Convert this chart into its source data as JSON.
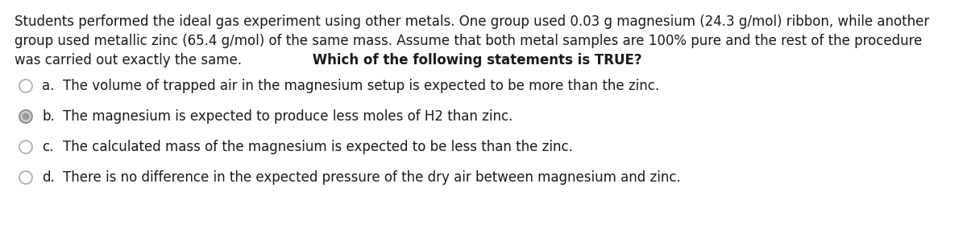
{
  "background_color": "#ffffff",
  "para_line1": "Students performed the ideal gas experiment using other metals. One group used 0.03 g magnesium (24.3 g/mol) ribbon, while another",
  "para_line2": "group used metallic zinc (65.4 g/mol) of the same mass. Assume that both metal samples are 100% pure and the rest of the procedure",
  "para_line3_normal": "was carried out exactly the same.",
  "para_line3_bold": " Which of the following statements is TRUE?",
  "options": [
    {
      "label": "a.",
      "text": "The volume of trapped air in the magnesium setup is expected to be more than the zinc.",
      "selected": false
    },
    {
      "label": "b.",
      "text": "The magnesium is expected to produce less moles of H2 than zinc.",
      "selected": true
    },
    {
      "label": "c.",
      "text": "The calculated mass of the magnesium is expected to be less than the zinc.",
      "selected": false
    },
    {
      "label": "d.",
      "text": "There is no difference in the expected pressure of the dry air between magnesium and zinc.",
      "selected": false
    }
  ],
  "font_size": 12.0,
  "text_color": "#1a1a1a",
  "circle_unselected_edge": "#b0b0b0",
  "circle_unselected_face": "#ffffff",
  "circle_selected_edge": "#888888",
  "circle_selected_face": "#cccccc",
  "circle_selected_inner": "#999999"
}
